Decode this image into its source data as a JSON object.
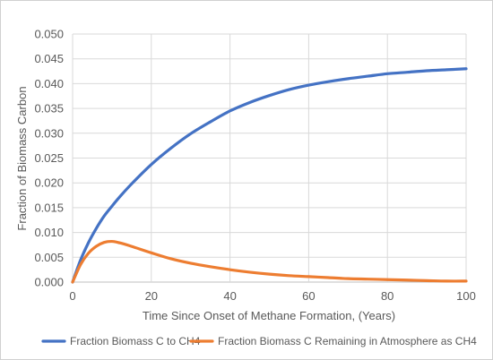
{
  "chart_data": {
    "type": "line",
    "title": "",
    "xlabel": "Time Since Onset of Methane Formation, (Years)",
    "ylabel": "Fraction of Biomass Carbon",
    "xlim": [
      0,
      100
    ],
    "ylim": [
      0,
      0.05
    ],
    "x_ticks": [
      "0",
      "20",
      "40",
      "60",
      "80",
      "100"
    ],
    "y_ticks": [
      "0.000",
      "0.005",
      "0.010",
      "0.015",
      "0.020",
      "0.025",
      "0.030",
      "0.035",
      "0.040",
      "0.045",
      "0.050"
    ],
    "grid": true,
    "legend_position": "bottom",
    "x": [
      0,
      2,
      4,
      6,
      8,
      10,
      12,
      15,
      20,
      25,
      30,
      35,
      40,
      45,
      50,
      55,
      60,
      65,
      70,
      75,
      80,
      85,
      90,
      95,
      100
    ],
    "series": [
      {
        "name": "Fraction Biomass C to CH4",
        "color": "#4472C4",
        "values": [
          0.0,
          0.0044,
          0.0079,
          0.0108,
          0.0133,
          0.0153,
          0.0172,
          0.0198,
          0.0237,
          0.027,
          0.0299,
          0.0323,
          0.0345,
          0.0362,
          0.0376,
          0.0388,
          0.0397,
          0.0404,
          0.041,
          0.0415,
          0.042,
          0.0423,
          0.0426,
          0.0428,
          0.043
        ]
      },
      {
        "name": "Fraction Biomass C Remaining in Atmosphere as CH4",
        "color": "#ED7D31",
        "values": [
          0.0,
          0.0035,
          0.0058,
          0.0072,
          0.008,
          0.0082,
          0.0079,
          0.0072,
          0.0059,
          0.0047,
          0.0038,
          0.0031,
          0.0025,
          0.002,
          0.0016,
          0.0013,
          0.0011,
          0.0009,
          0.0007,
          0.0006,
          0.0005,
          0.0004,
          0.0003,
          0.0002,
          0.0002
        ]
      }
    ]
  }
}
